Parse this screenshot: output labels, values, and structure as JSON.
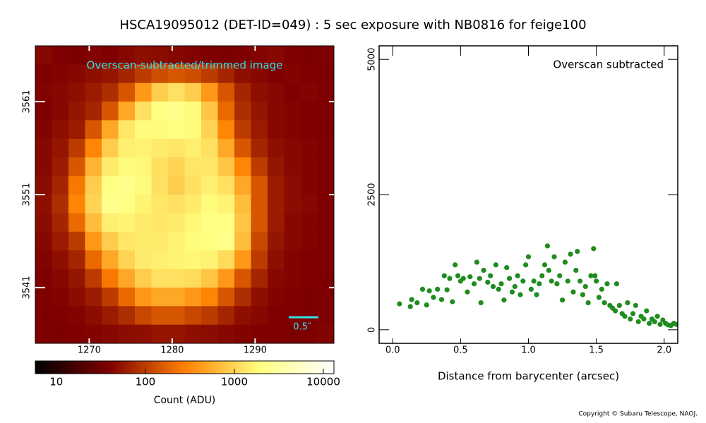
{
  "title": "HSCA19095012 (DET-ID=049) :  5 sec exposure with NB0816 for feige100",
  "copyright": "Copyright © Subaru Telescope, NAOJ.",
  "chart_data": [
    {
      "type": "heatmap",
      "title": "Overscan-subtracted/trimmed image",
      "annotation": "0.5″",
      "x": [
        1264.5,
        1266.5,
        1268.5,
        1270.5,
        1272.5,
        1274.5,
        1276.5,
        1278.5,
        1280.5,
        1282.5,
        1284.5,
        1286.5,
        1288.5,
        1290.5,
        1292.5,
        1294.5,
        1296.5,
        1298.5
      ],
      "y": [
        3566,
        3564,
        3562,
        3560,
        3558,
        3556,
        3554,
        3552,
        3550,
        3548,
        3546,
        3544,
        3542,
        3540,
        3538,
        3536
      ],
      "z": [
        [
          45,
          40,
          38,
          42,
          40,
          45,
          50,
          48,
          45,
          42,
          40,
          38,
          40,
          42,
          45,
          40,
          38,
          40
        ],
        [
          40,
          42,
          45,
          50,
          55,
          70,
          100,
          130,
          150,
          130,
          100,
          70,
          50,
          45,
          40,
          42,
          40,
          38
        ],
        [
          42,
          45,
          50,
          60,
          80,
          150,
          400,
          900,
          1200,
          900,
          400,
          150,
          70,
          50,
          45,
          40,
          42,
          40
        ],
        [
          40,
          45,
          55,
          70,
          150,
          500,
          1200,
          2000,
          2200,
          1800,
          800,
          200,
          80,
          55,
          45,
          42,
          40,
          40
        ],
        [
          42,
          50,
          60,
          150,
          500,
          1300,
          1800,
          1800,
          2000,
          1800,
          1000,
          300,
          100,
          60,
          45,
          42,
          40,
          38
        ],
        [
          45,
          55,
          100,
          300,
          900,
          1500,
          1600,
          1400,
          1300,
          1500,
          1200,
          500,
          150,
          70,
          50,
          45,
          42,
          40
        ],
        [
          45,
          60,
          150,
          600,
          1400,
          1800,
          1700,
          1200,
          1000,
          1300,
          1300,
          800,
          300,
          100,
          55,
          45,
          42,
          40
        ],
        [
          48,
          70,
          250,
          900,
          2000,
          2200,
          1800,
          1200,
          900,
          1200,
          1500,
          1200,
          500,
          150,
          60,
          48,
          42,
          40
        ],
        [
          50,
          80,
          300,
          1000,
          2300,
          2000,
          1600,
          1300,
          1200,
          1400,
          1800,
          1600,
          700,
          150,
          60,
          48,
          45,
          40
        ],
        [
          48,
          70,
          200,
          700,
          1500,
          1600,
          1400,
          1300,
          1400,
          1700,
          2000,
          2000,
          800,
          150,
          60,
          45,
          42,
          40
        ],
        [
          45,
          60,
          100,
          400,
          900,
          1300,
          1400,
          1400,
          1600,
          1800,
          2000,
          2200,
          700,
          120,
          55,
          45,
          42,
          40
        ],
        [
          42,
          50,
          70,
          200,
          500,
          1000,
          1400,
          1500,
          1600,
          1700,
          1600,
          1100,
          400,
          100,
          50,
          42,
          40,
          40
        ],
        [
          40,
          45,
          55,
          100,
          250,
          500,
          900,
          1200,
          1200,
          1100,
          800,
          400,
          150,
          70,
          45,
          42,
          40,
          38
        ],
        [
          40,
          42,
          48,
          60,
          100,
          200,
          400,
          500,
          500,
          400,
          300,
          150,
          80,
          50,
          42,
          40,
          38,
          40
        ],
        [
          38,
          40,
          42,
          48,
          60,
          80,
          120,
          150,
          150,
          120,
          100,
          70,
          50,
          45,
          40,
          40,
          38,
          40
        ],
        [
          40,
          38,
          40,
          42,
          45,
          48,
          50,
          55,
          55,
          50,
          48,
          45,
          42,
          40,
          40,
          38,
          40,
          42
        ]
      ],
      "xlim": [
        1263.5,
        1299.5
      ],
      "ylim": [
        3535,
        3567
      ],
      "xticks": [
        1270,
        1280,
        1290
      ],
      "yticks": [
        3541,
        3551,
        3561
      ],
      "colormap": "afmhot",
      "colorbar": {
        "label": "Count (ADU)",
        "log": true,
        "lim": [
          5.8,
          13150
        ],
        "ticks": [
          10,
          100,
          1000,
          10000
        ]
      }
    },
    {
      "type": "scatter",
      "legend": "Overscan subtracted",
      "legend_loc": "upper right",
      "xlabel": "Distance from barycenter (arcsec)",
      "color": "#1e8c1e",
      "x": [
        0.05,
        0.13,
        0.14,
        0.18,
        0.22,
        0.25,
        0.27,
        0.3,
        0.33,
        0.36,
        0.38,
        0.4,
        0.42,
        0.44,
        0.46,
        0.48,
        0.5,
        0.52,
        0.55,
        0.57,
        0.6,
        0.62,
        0.64,
        0.65,
        0.67,
        0.7,
        0.72,
        0.74,
        0.76,
        0.78,
        0.8,
        0.82,
        0.84,
        0.86,
        0.88,
        0.9,
        0.92,
        0.94,
        0.96,
        0.98,
        1.0,
        1.02,
        1.04,
        1.06,
        1.08,
        1.1,
        1.12,
        1.14,
        1.15,
        1.17,
        1.19,
        1.21,
        1.23,
        1.25,
        1.27,
        1.29,
        1.31,
        1.33,
        1.35,
        1.36,
        1.38,
        1.4,
        1.42,
        1.44,
        1.46,
        1.48,
        1.49,
        1.5,
        1.52,
        1.54,
        1.56,
        1.58,
        1.6,
        1.62,
        1.64,
        1.65,
        1.67,
        1.69,
        1.71,
        1.73,
        1.75,
        1.77,
        1.79,
        1.81,
        1.83,
        1.85,
        1.87,
        1.89,
        1.91,
        1.93,
        1.95,
        1.97,
        1.99,
        2.01,
        2.03,
        2.05,
        2.07,
        2.09
      ],
      "y": [
        480,
        430,
        560,
        500,
        750,
        460,
        720,
        600,
        750,
        560,
        1000,
        740,
        950,
        520,
        1200,
        1000,
        900,
        950,
        700,
        980,
        850,
        1250,
        950,
        500,
        1100,
        880,
        1000,
        800,
        1200,
        750,
        850,
        550,
        1150,
        950,
        700,
        800,
        1000,
        650,
        900,
        1200,
        1350,
        750,
        900,
        650,
        850,
        1000,
        1200,
        1550,
        1100,
        900,
        1350,
        850,
        1000,
        550,
        1250,
        900,
        1400,
        700,
        1100,
        1450,
        900,
        650,
        800,
        500,
        1000,
        1500,
        1000,
        900,
        600,
        750,
        500,
        850,
        450,
        400,
        350,
        850,
        450,
        300,
        250,
        500,
        200,
        300,
        450,
        150,
        250,
        200,
        350,
        120,
        200,
        150,
        250,
        100,
        180,
        120,
        90,
        80,
        120,
        100
      ],
      "xlim": [
        -0.1,
        2.1
      ],
      "ylim": [
        -250,
        5250
      ],
      "xticks": [
        {
          "value": 0,
          "label": "0.0"
        },
        0.5,
        {
          "value": 1,
          "label": "1.0"
        },
        1.5,
        {
          "value": 2,
          "label": "2.0"
        }
      ],
      "yticks": [
        0,
        2500,
        5000
      ]
    }
  ]
}
